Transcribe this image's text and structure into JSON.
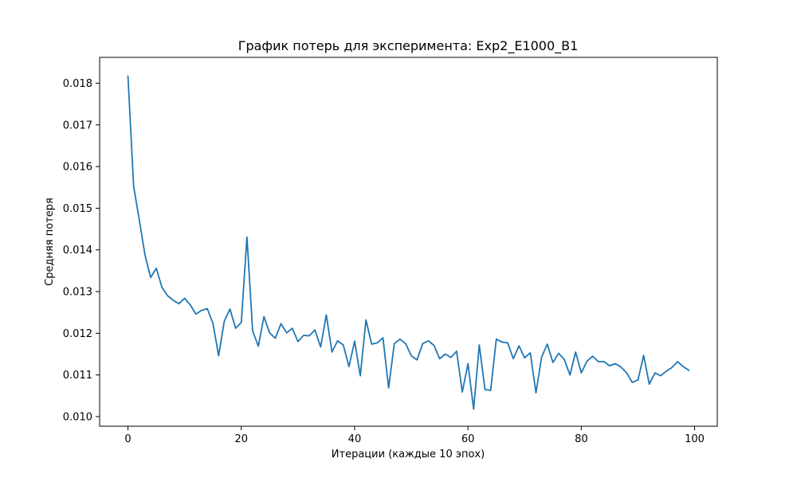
{
  "chart_data": {
    "type": "line",
    "title": "График потерь для эксперимента: Exp2_E1000_B1",
    "xlabel": "Итерации (каждые 10 эпох)",
    "ylabel": "Средняя потеря",
    "xlim": [
      -5,
      104
    ],
    "ylim": [
      0.00977,
      0.01862
    ],
    "xticks": [
      0,
      20,
      40,
      60,
      80,
      100
    ],
    "xtick_labels": [
      "0",
      "20",
      "40",
      "60",
      "80",
      "100"
    ],
    "yticks": [
      0.01,
      0.011,
      0.012,
      0.013,
      0.014,
      0.015,
      0.016,
      0.017,
      0.018
    ],
    "ytick_labels": [
      "0.010",
      "0.011",
      "0.012",
      "0.013",
      "0.014",
      "0.015",
      "0.016",
      "0.017",
      "0.018"
    ],
    "grid": false,
    "legend": false,
    "line_color": "#1f77b4",
    "series": [
      {
        "x": [
          0,
          1,
          2,
          3,
          4,
          5,
          6,
          7,
          8,
          9,
          10,
          11,
          12,
          13,
          14,
          15,
          16,
          17,
          18,
          19,
          20,
          21,
          22,
          23,
          24,
          25,
          26,
          27,
          28,
          29,
          30,
          31,
          32,
          33,
          34,
          35,
          36,
          37,
          38,
          39,
          40,
          41,
          42,
          43,
          44,
          45,
          46,
          47,
          48,
          49,
          50,
          51,
          52,
          53,
          54,
          55,
          56,
          57,
          58,
          59,
          60,
          61,
          62,
          63,
          64,
          65,
          66,
          67,
          68,
          69,
          70,
          71,
          72,
          73,
          74,
          75,
          76,
          77,
          78,
          79,
          80,
          81,
          82,
          83,
          84,
          85,
          86,
          87,
          88,
          89,
          90,
          91,
          92,
          93,
          94,
          95,
          96,
          97,
          98,
          99
        ],
        "values": [
          0.01817,
          0.01553,
          0.01472,
          0.01388,
          0.01334,
          0.01356,
          0.0131,
          0.0129,
          0.01279,
          0.01271,
          0.01284,
          0.01268,
          0.01246,
          0.01255,
          0.01259,
          0.01224,
          0.01146,
          0.01229,
          0.01258,
          0.01212,
          0.01226,
          0.01431,
          0.01206,
          0.01169,
          0.0124,
          0.01201,
          0.01188,
          0.01223,
          0.01201,
          0.01212,
          0.0118,
          0.01195,
          0.01194,
          0.01208,
          0.01167,
          0.01244,
          0.01155,
          0.01182,
          0.01172,
          0.0112,
          0.01181,
          0.01098,
          0.01232,
          0.01174,
          0.01177,
          0.01189,
          0.01069,
          0.01175,
          0.01186,
          0.01175,
          0.01146,
          0.01136,
          0.01175,
          0.01182,
          0.01171,
          0.01139,
          0.0115,
          0.01142,
          0.01157,
          0.01059,
          0.01127,
          0.01018,
          0.01172,
          0.01065,
          0.01063,
          0.01186,
          0.01179,
          0.01177,
          0.01139,
          0.0117,
          0.01141,
          0.01153,
          0.01057,
          0.01143,
          0.01174,
          0.0113,
          0.01152,
          0.01137,
          0.011,
          0.01155,
          0.01105,
          0.01133,
          0.01145,
          0.01132,
          0.01132,
          0.01122,
          0.01127,
          0.01119,
          0.01105,
          0.01082,
          0.01088,
          0.01147,
          0.01078,
          0.01105,
          0.01098,
          0.01109,
          0.01118,
          0.01132,
          0.0112,
          0.01111
        ]
      }
    ]
  }
}
